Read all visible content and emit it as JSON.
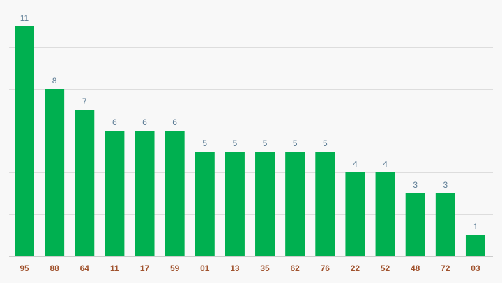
{
  "chart_data": {
    "type": "bar",
    "title": "",
    "xlabel": "",
    "ylabel": "",
    "categories": [
      "95",
      "88",
      "64",
      "11",
      "17",
      "59",
      "01",
      "13",
      "35",
      "62",
      "76",
      "22",
      "52",
      "48",
      "72",
      "03"
    ],
    "values": [
      11,
      8,
      7,
      6,
      6,
      6,
      5,
      5,
      5,
      5,
      5,
      4,
      4,
      3,
      3,
      1
    ],
    "ylim": [
      0,
      12
    ],
    "grid": true,
    "legend": "none",
    "colors": {
      "bar": "#00b050",
      "value_label": "#5b7b94",
      "category_label": "#a0522d",
      "gridline": "#dddddd",
      "background": "#f8f8f8"
    }
  }
}
